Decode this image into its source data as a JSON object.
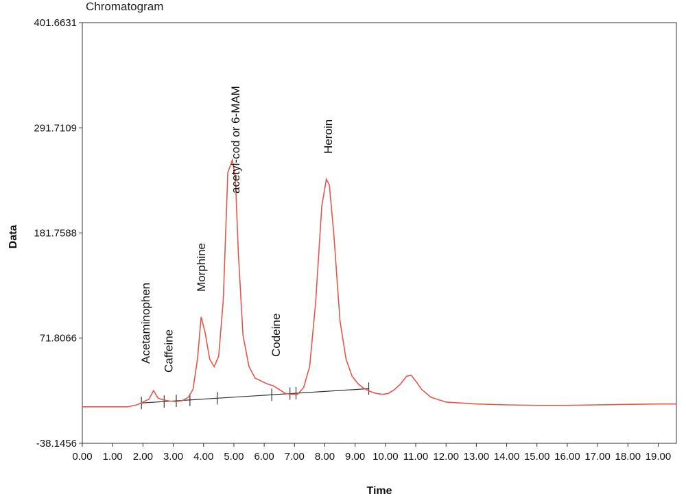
{
  "chart_data": {
    "type": "line",
    "title": "Chromatogram",
    "xlabel": "Time",
    "ylabel": "Data",
    "xlim": [
      0,
      19.6
    ],
    "ylim": [
      -38.1456,
      401.6631
    ],
    "xticks": [
      "0.00",
      "1.00",
      "2.00",
      "3.00",
      "4.00",
      "5.00",
      "6.00",
      "7.00",
      "8.00",
      "9.00",
      "10.00",
      "11.00",
      "12.00",
      "13.00",
      "14.00",
      "15.00",
      "16.00",
      "17.00",
      "18.00",
      "19.00"
    ],
    "yticks": [
      "-38.1456",
      "71.8066",
      "181.7588",
      "291.7109",
      "401.6631"
    ],
    "grid": false,
    "series": [
      {
        "color": "#e8554a",
        "x": [
          0,
          1.5,
          1.8,
          2.0,
          2.2,
          2.35,
          2.5,
          2.7,
          2.9,
          3.1,
          3.3,
          3.5,
          3.65,
          3.8,
          3.92,
          4.05,
          4.2,
          4.35,
          4.5,
          4.65,
          4.8,
          4.95,
          5.05,
          5.15,
          5.3,
          5.5,
          5.7,
          5.9,
          6.1,
          6.3,
          6.5,
          6.7,
          6.9,
          7.1,
          7.3,
          7.5,
          7.7,
          7.9,
          8.05,
          8.15,
          8.3,
          8.5,
          8.7,
          8.9,
          9.1,
          9.3,
          9.5,
          9.7,
          9.9,
          10.1,
          10.3,
          10.5,
          10.7,
          10.85,
          11.0,
          11.2,
          11.5,
          12.0,
          13.0,
          14.0,
          15.0,
          16.0,
          17.0,
          18.0,
          19.0,
          19.6
        ],
        "y": [
          0,
          0,
          2,
          5,
          8,
          17,
          9,
          7,
          6,
          5.5,
          6.5,
          10,
          18,
          50,
          94,
          78,
          50,
          42,
          53,
          112,
          245,
          258,
          240,
          160,
          75,
          42,
          30,
          27,
          24,
          22,
          18,
          14,
          13,
          13,
          20,
          42,
          110,
          210,
          238,
          232,
          180,
          90,
          50,
          32,
          24,
          19,
          16,
          14,
          13,
          14,
          18,
          24,
          32,
          33,
          27,
          18,
          10,
          5,
          3,
          2,
          1.5,
          1.5,
          2,
          2.5,
          3,
          3
        ]
      }
    ],
    "baseline": {
      "x": [
        1.95,
        9.45
      ],
      "y": [
        4,
        19
      ]
    },
    "peak_markers": [
      1.95,
      2.7,
      3.1,
      3.55,
      4.45,
      6.25,
      6.85,
      7.05,
      9.45
    ],
    "annotations": [
      {
        "text": "Acetaminophen",
        "x": 2.35
      },
      {
        "text": "Caffeine",
        "x": 2.7
      },
      {
        "text": "Morphine",
        "x": 3.92
      },
      {
        "text": "acetyl-cod or 6-MAM",
        "x": 5.05
      },
      {
        "text": "Codeine",
        "x": 6.25
      },
      {
        "text": "Heroin",
        "x": 8.1
      }
    ]
  }
}
